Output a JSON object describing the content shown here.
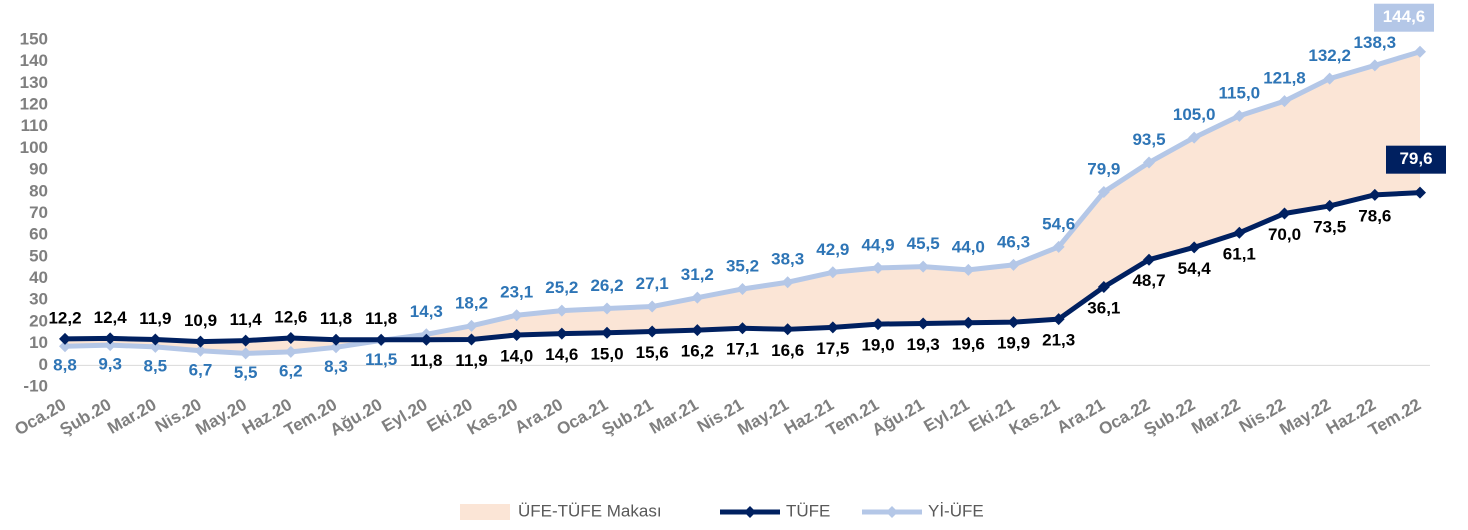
{
  "chart_data": {
    "type": "line",
    "categories": [
      "Oca.20",
      "Şub.20",
      "Mar.20",
      "Nis.20",
      "May.20",
      "Haz.20",
      "Tem.20",
      "Ağu.20",
      "Eyl.20",
      "Eki.20",
      "Kas.20",
      "Ara.20",
      "Oca.21",
      "Şub.21",
      "Mar.21",
      "Nis.21",
      "May.21",
      "Haz.21",
      "Tem.21",
      "Ağu.21",
      "Eyl.21",
      "Eki.21",
      "Kas.21",
      "Ara.21",
      "Oca.22",
      "Şub.22",
      "Mar.22",
      "Nis.22",
      "May.22",
      "Haz.22",
      "Tem.22"
    ],
    "area": {
      "name": "ÜFE-TÜFE Makası",
      "color": "#fbe5d6"
    },
    "series": [
      {
        "name": "TÜFE",
        "color": "#002060",
        "label_color": "#000000",
        "values": [
          12.2,
          12.4,
          11.9,
          10.9,
          11.4,
          12.6,
          11.8,
          11.8,
          11.8,
          11.9,
          14.0,
          14.6,
          15.0,
          15.6,
          16.2,
          17.1,
          16.6,
          17.5,
          19.0,
          19.3,
          19.6,
          19.9,
          21.3,
          36.1,
          48.7,
          54.4,
          61.1,
          70.0,
          73.5,
          78.6,
          79.6
        ],
        "value_labels": [
          "12,2",
          "12,4",
          "11,9",
          "10,9",
          "11,4",
          "12,6",
          "11,8",
          "11,8",
          "11,8",
          "11,9",
          "14,0",
          "14,6",
          "15,0",
          "15,6",
          "16,2",
          "17,1",
          "16,6",
          "17,5",
          "19,0",
          "19,3",
          "19,6",
          "19,9",
          "21,3",
          "36,1",
          "48,7",
          "54,4",
          "61,1",
          "70,0",
          "73,5",
          "78,6",
          "79,6"
        ]
      },
      {
        "name": "Yİ-ÜFE",
        "color": "#b4c7e7",
        "label_color": "#2e75b6",
        "values": [
          8.8,
          9.3,
          8.5,
          6.7,
          5.5,
          6.2,
          8.3,
          11.5,
          14.3,
          18.2,
          23.1,
          25.2,
          26.2,
          27.1,
          31.2,
          35.2,
          38.3,
          42.9,
          44.9,
          45.5,
          44.0,
          46.3,
          54.6,
          79.9,
          93.5,
          105.0,
          115.0,
          121.8,
          132.2,
          138.3,
          144.6
        ],
        "value_labels": [
          "8,8",
          "9,3",
          "8,5",
          "6,7",
          "5,5",
          "6,2",
          "8,3",
          "11,5",
          "14,3",
          "18,2",
          "23,1",
          "25,2",
          "26,2",
          "27,1",
          "31,2",
          "35,2",
          "38,3",
          "42,9",
          "44,9",
          "45,5",
          "44,0",
          "46,3",
          "54,6",
          "79,9",
          "93,5",
          "105,0",
          "115,0",
          "121,8",
          "132,2",
          "138,3",
          "144,6"
        ]
      }
    ],
    "ylim": [
      -10,
      150
    ],
    "yticks": [
      -10,
      0,
      10,
      20,
      30,
      40,
      50,
      60,
      70,
      80,
      90,
      100,
      110,
      120,
      130,
      140,
      150
    ],
    "grid": false
  }
}
